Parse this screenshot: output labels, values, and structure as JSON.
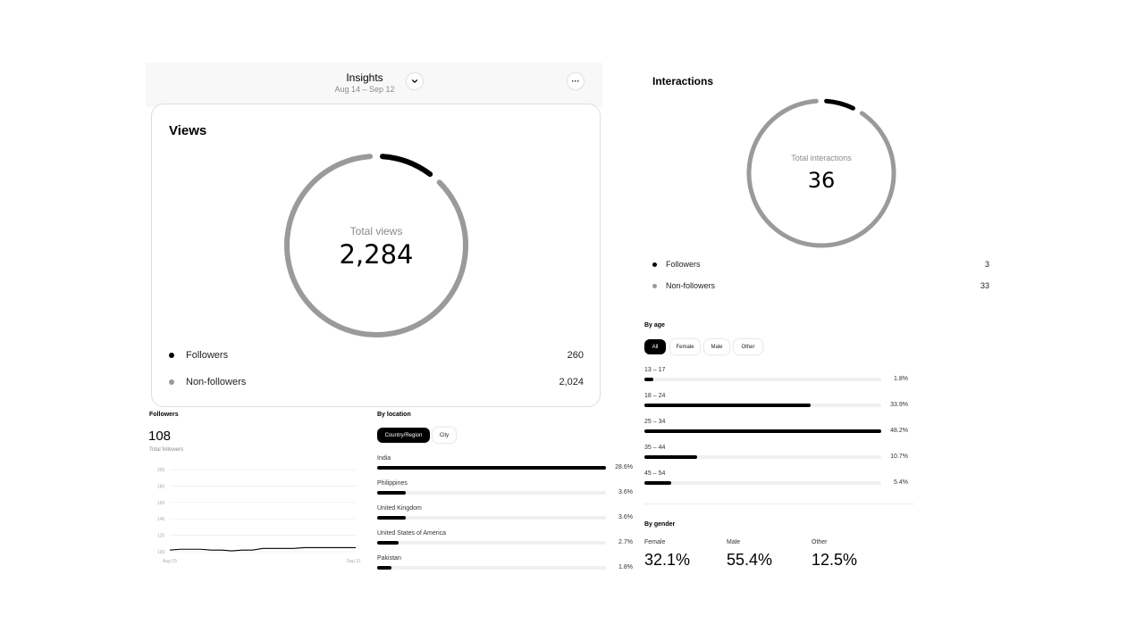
{
  "insights": {
    "title": "Insights",
    "date_range": "Aug 14 – Sep 12",
    "more_label": "···"
  },
  "views": {
    "title": "Views",
    "total_label": "Total views",
    "total_value": "2,284",
    "followers": {
      "label": "Followers",
      "value": "260",
      "count": 260
    },
    "non_followers": {
      "label": "Non-followers",
      "value": "2,024",
      "count": 2024
    }
  },
  "interactions": {
    "title": "Interactions",
    "total_label": "Total interactions",
    "total_value": "36",
    "followers": {
      "label": "Followers",
      "value": "3",
      "count": 3
    },
    "non_followers": {
      "label": "Non-followers",
      "value": "33",
      "count": 33
    }
  },
  "by_age": {
    "title": "By age",
    "tabs": [
      "All",
      "Female",
      "Male",
      "Other"
    ],
    "active_tab": "All",
    "rows": [
      {
        "label": "13 – 17",
        "pct": "1.8%",
        "value": 1.8
      },
      {
        "label": "18 – 24",
        "pct": "33.9%",
        "value": 33.9
      },
      {
        "label": "25 – 34",
        "pct": "48.2%",
        "value": 48.2
      },
      {
        "label": "35 – 44",
        "pct": "10.7%",
        "value": 10.7
      },
      {
        "label": "45 – 54",
        "pct": "5.4%",
        "value": 5.4
      }
    ]
  },
  "by_gender": {
    "title": "By gender",
    "items": [
      {
        "label": "Female",
        "value": "32.1%"
      },
      {
        "label": "Male",
        "value": "55.4%"
      },
      {
        "label": "Other",
        "value": "12.5%"
      }
    ]
  },
  "followers_section": {
    "title": "Followers",
    "count": "108",
    "sub": "Total followers"
  },
  "by_location": {
    "title": "By location",
    "tabs": [
      "Country/Region",
      "City"
    ],
    "active_tab": "Country/Region",
    "rows": [
      {
        "label": "India",
        "pct": "28.6%",
        "value": 28.6
      },
      {
        "label": "Philippines",
        "pct": "3.6%",
        "value": 3.6
      },
      {
        "label": "United Kingdom",
        "pct": "3.6%",
        "value": 3.6
      },
      {
        "label": "United States of America",
        "pct": "2.7%",
        "value": 2.7
      },
      {
        "label": "Pakistan",
        "pct": "1.8%",
        "value": 1.8
      }
    ]
  },
  "chart_data": {
    "type": "line",
    "title": "",
    "xlabel": "",
    "ylabel": "",
    "x_tick_labels": [
      "Aug 15",
      "Sep 11"
    ],
    "y_ticks": [
      100,
      120,
      140,
      160,
      180,
      200
    ],
    "ylim": [
      100,
      200
    ],
    "grid": true,
    "series": [
      {
        "values": [
          102,
          103,
          103,
          103,
          102,
          102,
          101,
          102,
          102,
          104,
          104,
          104,
          104,
          105,
          105,
          105,
          105,
          105,
          105
        ]
      }
    ]
  },
  "colors": {
    "primary": "#000000",
    "secondary": "#9a9a9a",
    "track": "#f0f0f0"
  }
}
